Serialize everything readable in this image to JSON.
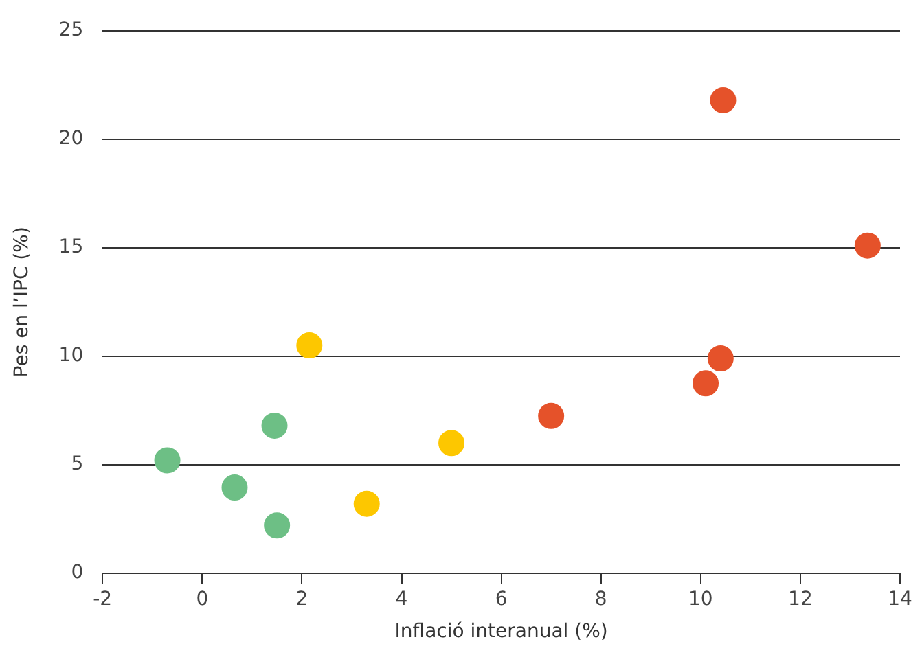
{
  "chart_data": {
    "type": "scatter",
    "xlabel": "Inflació interanual (%)",
    "ylabel": "Pes en l’IPC (%)",
    "xlim": [
      -2,
      14
    ],
    "xticks": [
      -2,
      0,
      2,
      4,
      6,
      8,
      10,
      12,
      14
    ],
    "ylim": [
      0,
      25
    ],
    "yticks": [
      0,
      5,
      10,
      15,
      20,
      25
    ],
    "grid": "y",
    "marker": "circle",
    "series": [
      {
        "color": "#6dbf85",
        "x": [
          -0.7,
          0.65,
          1.45,
          1.5
        ],
        "values": [
          5.2,
          3.95,
          6.8,
          2.2
        ]
      },
      {
        "color": "#fdc700",
        "x": [
          2.15,
          3.3,
          5.0
        ],
        "values": [
          10.5,
          3.2,
          6.0
        ]
      },
      {
        "color": "#e5522a",
        "x": [
          7.0,
          10.1,
          10.4,
          10.45,
          13.35
        ],
        "values": [
          7.25,
          8.75,
          9.9,
          21.8,
          15.1
        ]
      }
    ]
  }
}
